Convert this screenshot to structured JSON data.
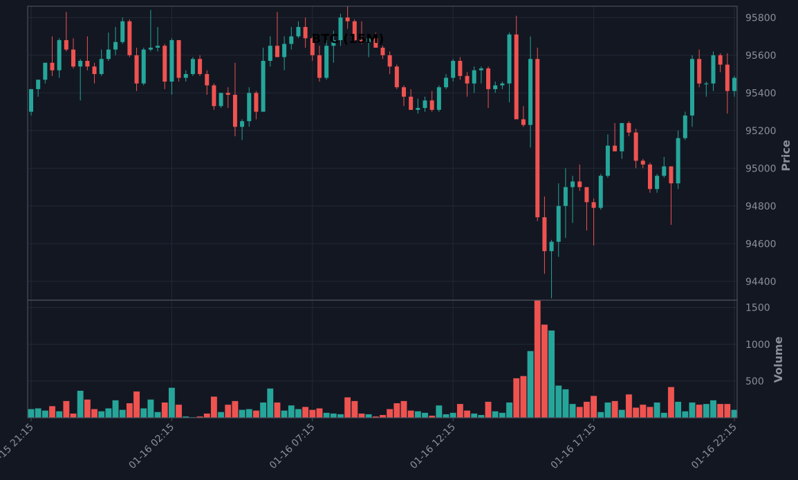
{
  "colors": {
    "background": "#131722",
    "grid": "#232836",
    "frame": "#4a4f5c",
    "up": "#26a69a",
    "down": "#ef5350",
    "text": "#8a8f9c",
    "title": "#000000"
  },
  "chart_data": {
    "type": "candlestick",
    "title": "BTC (15M)",
    "ylabel_price": "Price",
    "ylabel_volume": "Volume",
    "price_ticks": [
      94400,
      94600,
      94800,
      95000,
      95200,
      95400,
      95600,
      95800
    ],
    "price_ylim": [
      94300,
      95860
    ],
    "volume_ticks": [
      500,
      1000,
      1500
    ],
    "volume_ylim": [
      0,
      1600
    ],
    "x_tick_labels": [
      "01-15 21:15",
      "01-16 02:15",
      "01-16 07:15",
      "01-16 12:15",
      "01-16 17:15",
      "01-16 22:15"
    ],
    "x_tick_indices": [
      0,
      20,
      40,
      60,
      80,
      100
    ],
    "grid": true,
    "candles": [
      [
        95300,
        95420,
        95280,
        95420
      ],
      [
        95420,
        95470,
        95380,
        95470
      ],
      [
        95470,
        95560,
        95450,
        95560
      ],
      [
        95560,
        95700,
        95490,
        95520
      ],
      [
        95520,
        95690,
        95480,
        95680
      ],
      [
        95680,
        95830,
        95620,
        95630
      ],
      [
        95630,
        95690,
        95530,
        95540
      ],
      [
        95540,
        95580,
        95360,
        95570
      ],
      [
        95570,
        95700,
        95520,
        95540
      ],
      [
        95540,
        95560,
        95450,
        95500
      ],
      [
        95500,
        95630,
        95490,
        95580
      ],
      [
        95580,
        95720,
        95570,
        95630
      ],
      [
        95630,
        95750,
        95600,
        95670
      ],
      [
        95670,
        95800,
        95660,
        95780
      ],
      [
        95780,
        95790,
        95590,
        95600
      ],
      [
        95600,
        95640,
        95410,
        95450
      ],
      [
        95450,
        95640,
        95440,
        95630
      ],
      [
        95630,
        95840,
        95620,
        95640
      ],
      [
        95640,
        95750,
        95620,
        95650
      ],
      [
        95650,
        95660,
        95420,
        95460
      ],
      [
        95460,
        95690,
        95390,
        95680
      ],
      [
        95680,
        95680,
        95460,
        95480
      ],
      [
        95480,
        95520,
        95460,
        95500
      ],
      [
        95500,
        95590,
        95490,
        95580
      ],
      [
        95580,
        95600,
        95490,
        95500
      ],
      [
        95500,
        95520,
        95390,
        95440
      ],
      [
        95440,
        95450,
        95310,
        95330
      ],
      [
        95330,
        95400,
        95320,
        95400
      ],
      [
        95400,
        95430,
        95320,
        95390
      ],
      [
        95390,
        95560,
        95170,
        95220
      ],
      [
        95220,
        95260,
        95150,
        95250
      ],
      [
        95250,
        95430,
        95220,
        95400
      ],
      [
        95400,
        95410,
        95260,
        95300
      ],
      [
        95300,
        95640,
        95300,
        95570
      ],
      [
        95570,
        95700,
        95540,
        95650
      ],
      [
        95650,
        95830,
        95590,
        95590
      ],
      [
        95590,
        95700,
        95520,
        95660
      ],
      [
        95660,
        95750,
        95630,
        95700
      ],
      [
        95700,
        95780,
        95690,
        95750
      ],
      [
        95750,
        95800,
        95640,
        95690
      ],
      [
        95690,
        95700,
        95570,
        95600
      ],
      [
        95600,
        95650,
        95460,
        95480
      ],
      [
        95480,
        95680,
        95470,
        95650
      ],
      [
        95650,
        95730,
        95560,
        95680
      ],
      [
        95680,
        95820,
        95650,
        95800
      ],
      [
        95800,
        95860,
        95740,
        95780
      ],
      [
        95780,
        95790,
        95670,
        95680
      ],
      [
        95680,
        95780,
        95660,
        95670
      ],
      [
        95670,
        95700,
        95590,
        95690
      ],
      [
        95690,
        95720,
        95640,
        95640
      ],
      [
        95640,
        95650,
        95580,
        95600
      ],
      [
        95600,
        95620,
        95500,
        95540
      ],
      [
        95540,
        95550,
        95420,
        95430
      ],
      [
        95430,
        95440,
        95330,
        95380
      ],
      [
        95380,
        95420,
        95310,
        95310
      ],
      [
        95310,
        95370,
        95290,
        95320
      ],
      [
        95320,
        95380,
        95300,
        95360
      ],
      [
        95360,
        95410,
        95300,
        95310
      ],
      [
        95310,
        95440,
        95300,
        95430
      ],
      [
        95430,
        95500,
        95420,
        95480
      ],
      [
        95480,
        95580,
        95460,
        95570
      ],
      [
        95570,
        95590,
        95470,
        95490
      ],
      [
        95490,
        95510,
        95380,
        95450
      ],
      [
        95450,
        95540,
        95400,
        95520
      ],
      [
        95520,
        95540,
        95450,
        95530
      ],
      [
        95530,
        95540,
        95320,
        95420
      ],
      [
        95420,
        95460,
        95400,
        95440
      ],
      [
        95440,
        95460,
        95420,
        95450
      ],
      [
        95450,
        95720,
        95350,
        95710
      ],
      [
        95710,
        95810,
        95260,
        95260
      ],
      [
        95260,
        95330,
        95220,
        95230
      ],
      [
        95230,
        95700,
        95110,
        95580
      ],
      [
        95580,
        95640,
        94720,
        94740
      ],
      [
        94740,
        94850,
        94440,
        94560
      ],
      [
        94560,
        94620,
        94310,
        94610
      ],
      [
        94610,
        94920,
        94530,
        94800
      ],
      [
        94800,
        95000,
        94630,
        94900
      ],
      [
        94900,
        94960,
        94710,
        94930
      ],
      [
        94930,
        95020,
        94880,
        94900
      ],
      [
        94900,
        94900,
        94670,
        94820
      ],
      [
        94820,
        94840,
        94590,
        94790
      ],
      [
        94790,
        94970,
        94780,
        94960
      ],
      [
        94960,
        95180,
        94950,
        95120
      ],
      [
        95120,
        95240,
        95090,
        95090
      ],
      [
        95090,
        95240,
        95050,
        95240
      ],
      [
        95240,
        95250,
        95170,
        95190
      ],
      [
        95190,
        95210,
        95000,
        95040
      ],
      [
        95040,
        95050,
        95000,
        95020
      ],
      [
        95020,
        95030,
        94870,
        94890
      ],
      [
        94890,
        94970,
        94870,
        94960
      ],
      [
        94960,
        95060,
        94950,
        95010
      ],
      [
        95010,
        95010,
        94700,
        94920
      ],
      [
        94920,
        95200,
        94890,
        95160
      ],
      [
        95160,
        95300,
        95150,
        95280
      ],
      [
        95280,
        95600,
        95220,
        95580
      ],
      [
        95580,
        95630,
        95430,
        95450
      ],
      [
        95450,
        95460,
        95380,
        95450
      ],
      [
        95450,
        95620,
        95410,
        95600
      ],
      [
        95600,
        95610,
        95510,
        95550
      ],
      [
        95550,
        95610,
        95290,
        95410
      ],
      [
        95410,
        95490,
        95380,
        95480
      ]
    ],
    "volume": [
      120,
      130,
      100,
      160,
      90,
      230,
      60,
      370,
      250,
      120,
      90,
      130,
      240,
      110,
      200,
      360,
      130,
      250,
      80,
      210,
      410,
      180,
      20,
      10,
      20,
      60,
      290,
      80,
      180,
      230,
      110,
      120,
      100,
      210,
      400,
      210,
      100,
      170,
      120,
      150,
      110,
      130,
      70,
      60,
      50,
      280,
      230,
      60,
      50,
      20,
      40,
      120,
      200,
      230,
      100,
      90,
      70,
      30,
      170,
      50,
      70,
      190,
      100,
      60,
      40,
      220,
      90,
      70,
      210,
      540,
      570,
      910,
      1600,
      1270,
      1190,
      440,
      390,
      190,
      150,
      220,
      300,
      80,
      210,
      230,
      110,
      320,
      140,
      180,
      150,
      210,
      70,
      420,
      220,
      90,
      210,
      180,
      190,
      240,
      190,
      190,
      110
    ]
  }
}
